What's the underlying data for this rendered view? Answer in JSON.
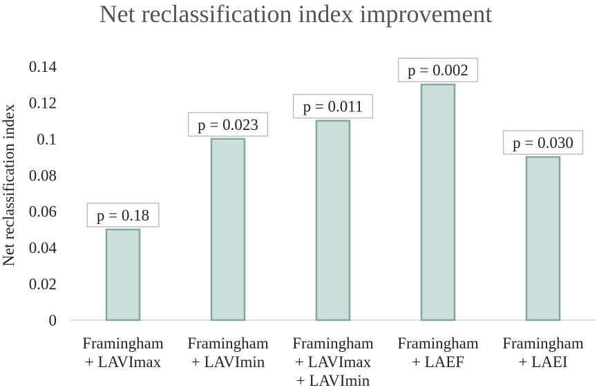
{
  "chart_data": {
    "type": "bar",
    "title": "Net reclassification index improvement",
    "xlabel": "",
    "ylabel": "Net reclassification index",
    "ylim": [
      0,
      0.14
    ],
    "yticks": [
      "0",
      "0.02",
      "0.04",
      "0.06",
      "0.08",
      "0.1",
      "0.12",
      "0.14"
    ],
    "grid": false,
    "categories": [
      [
        "Framingham",
        "+ LAVImax"
      ],
      [
        "Framingham",
        "+ LAVImin"
      ],
      [
        "Framingham",
        "+ LAVImax",
        "+ LAVImin"
      ],
      [
        "Framingham",
        "+ LAEF"
      ],
      [
        "Framingham",
        "+ LAEI"
      ]
    ],
    "values": [
      0.05,
      0.1,
      0.11,
      0.13,
      0.09
    ],
    "data_labels": [
      "p = 0.18",
      "p = 0.023",
      "p = 0.011",
      "p = 0.002",
      "p = 0.030"
    ],
    "colors": {
      "bar_fill": "#cddfdb",
      "bar_stroke": "#7fa89f",
      "axis": "#d0d0d0",
      "label_box": "#bfbfbf"
    }
  }
}
